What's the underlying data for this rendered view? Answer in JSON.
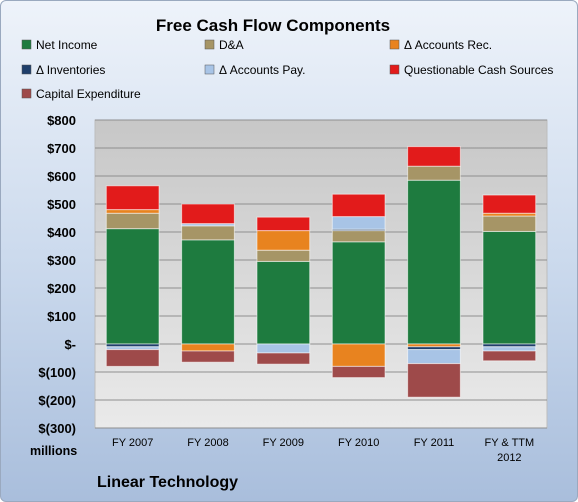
{
  "chart_data": {
    "type": "bar",
    "stacked": true,
    "title": "Free Cash Flow Components",
    "ylabel": "millions",
    "company": "Linear Technology",
    "ylim": [
      -300,
      800
    ],
    "yticks": [
      -300,
      -200,
      -100,
      0,
      100,
      200,
      300,
      400,
      500,
      600,
      700,
      800
    ],
    "ytick_labels": [
      "$(300)",
      "$(200)",
      "$(100)",
      "$-",
      "$100",
      "$200",
      "$300",
      "$400",
      "$500",
      "$600",
      "$700",
      "$800"
    ],
    "categories": [
      "FY 2007",
      "FY 2008",
      "FY 2009",
      "FY 2010",
      "FY 2011",
      "FY & TTM|2012"
    ],
    "grid": true,
    "legend_position": "top",
    "series": [
      {
        "name": "Net Income",
        "color": "#1e7b3f",
        "values": [
          412,
          372,
          295,
          365,
          585,
          402
        ]
      },
      {
        "name": "D&A",
        "color": "#a69566",
        "values": [
          55,
          50,
          40,
          40,
          50,
          55
        ]
      },
      {
        "name": "Δ Accounts Rec.",
        "color": "#e8831f",
        "values": [
          13,
          -25,
          70,
          -80,
          -10,
          10
        ]
      },
      {
        "name": "Δ Inventories",
        "color": "#1f3f6b",
        "values": [
          -10,
          0,
          0,
          5,
          -10,
          -10
        ]
      },
      {
        "name": "Δ Accounts Pay.",
        "color": "#a8c4e6",
        "values": [
          -10,
          8,
          -32,
          45,
          -50,
          -15
        ]
      },
      {
        "name": "Questionable Cash Sources",
        "color": "#e21b1b",
        "values": [
          85,
          70,
          48,
          80,
          70,
          65
        ]
      },
      {
        "name": "Capital Expenditure",
        "color": "#9e4a4a",
        "values": [
          -60,
          -40,
          -40,
          -40,
          -120,
          -35
        ]
      }
    ]
  }
}
